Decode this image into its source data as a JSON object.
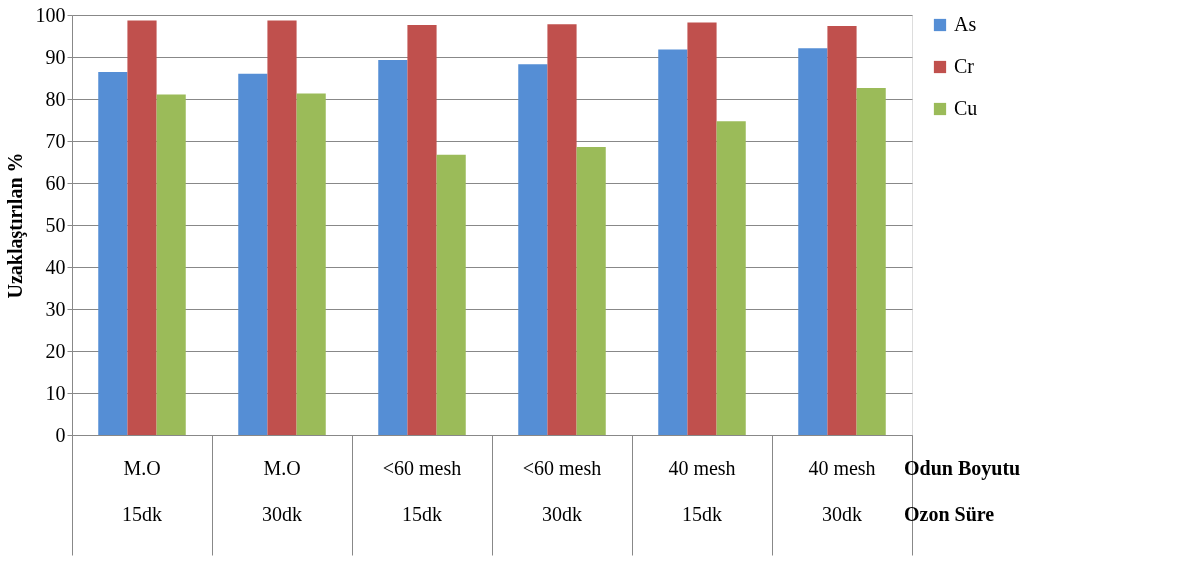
{
  "chart_data": {
    "type": "bar",
    "ylabel": "Uzaklaştırılan %",
    "categories": [
      "M.O\n15dk",
      "M.O\n30dk",
      "<60 mesh\n15dk",
      "<60 mesh\n30dk",
      "40 mesh\n15dk",
      "40 mesh\n30dk"
    ],
    "series": [
      {
        "name": "As",
        "color": "#558ed5",
        "values": [
          86.4,
          86,
          89.3,
          88.3,
          91.8,
          92.1
        ]
      },
      {
        "name": "Cr",
        "color": "#c0504d",
        "values": [
          98.7,
          98.7,
          97.6,
          97.8,
          98.2,
          97.4
        ]
      },
      {
        "name": "Cu",
        "color": "#9bbb59",
        "values": [
          81.1,
          81.3,
          66.7,
          68.6,
          74.7,
          82.6
        ]
      }
    ],
    "ylim": [
      0,
      100
    ],
    "yticks": [
      0,
      10,
      20,
      30,
      40,
      50,
      60,
      70,
      80,
      90,
      100
    ],
    "grid": "y",
    "legend": "right",
    "annotations": [
      "Odun Boyutu",
      "Ozon Süre"
    ]
  }
}
